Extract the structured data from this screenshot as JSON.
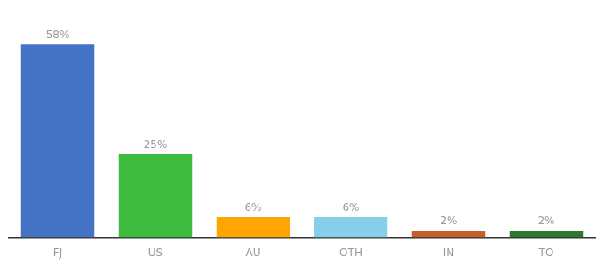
{
  "chart_data": {
    "type": "bar",
    "categories": [
      "FJ",
      "US",
      "AU",
      "OTH",
      "IN",
      "TO"
    ],
    "values": [
      58,
      25,
      6,
      6,
      2,
      2
    ],
    "value_labels": [
      "58%",
      "25%",
      "6%",
      "6%",
      "2%",
      "2%"
    ],
    "colors": [
      "#4472C4",
      "#3CBB3C",
      "#FFA500",
      "#87CEEB",
      "#C0622A",
      "#2D7A2D"
    ],
    "ylim": [
      0,
      65
    ],
    "grid": false,
    "data_labels": true,
    "tick_labels": "x"
  }
}
